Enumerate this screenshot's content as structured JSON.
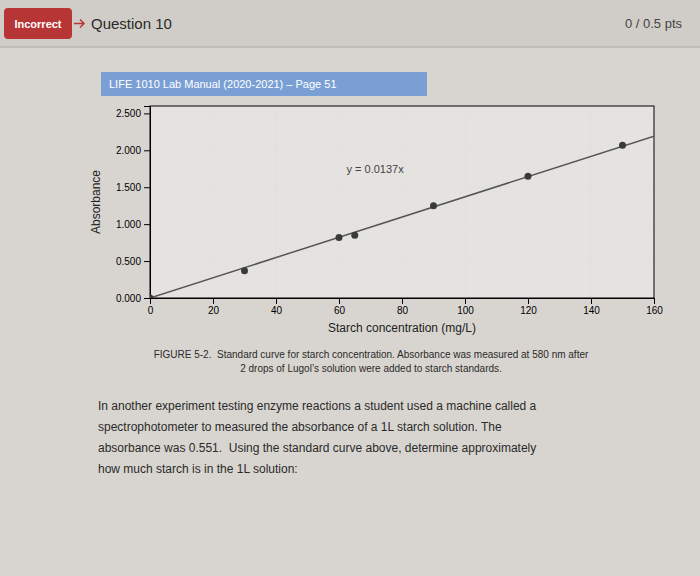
{
  "header": {
    "status": "Incorrect",
    "title": "Question 10",
    "score": "0 / 0.5 pts"
  },
  "banner": "LIFE 1010 Lab Manual (2020-2021) – Page 51",
  "caption": [
    "FIGURE 5-2.  Standard curve for starch concentration. Absorbance was measured at 580 nm after",
    "2 drops of Lugol’s solution were added to starch standards."
  ],
  "body": [
    "In another experiment testing enzyme reactions a student used a machine called a",
    "spectrophotometer to measured the absorbance of a 1L starch solution. The",
    "absorbance was 0.551.  Using the standard curve above, determine approximately",
    "how much starch is in the 1L solution:"
  ],
  "chart_data": {
    "type": "scatter",
    "x_label": "Starch concentration (mg/L)",
    "y_label": "Absorbance",
    "annotations": [
      "y = 0.0137x"
    ],
    "series": [
      {
        "type": "scatter",
        "color": "#3a3a3a",
        "x": [
          0,
          30,
          60,
          65,
          90,
          120,
          150
        ],
        "values": [
          0.0,
          0.37,
          0.82,
          0.85,
          1.25,
          1.65,
          2.07
        ]
      },
      {
        "type": "line",
        "color": "#555555",
        "x": [
          0,
          160
        ],
        "values": [
          0,
          2.192
        ]
      }
    ],
    "xlim": [
      0,
      160
    ],
    "ylim": [
      0.0,
      2.6
    ],
    "xticks": [
      0,
      20,
      40,
      60,
      80,
      100,
      120,
      140,
      160
    ],
    "yticks": [
      {
        "value": 0.0,
        "label": "0.000"
      },
      {
        "value": 0.5,
        "label": "0.500"
      },
      {
        "value": 1.0,
        "label": "1.000"
      },
      {
        "value": 1.5,
        "label": "1.500"
      },
      {
        "value": 2.0,
        "label": "2.000"
      },
      {
        "value": 2.5,
        "label": "2.500"
      }
    ],
    "grid": true
  }
}
